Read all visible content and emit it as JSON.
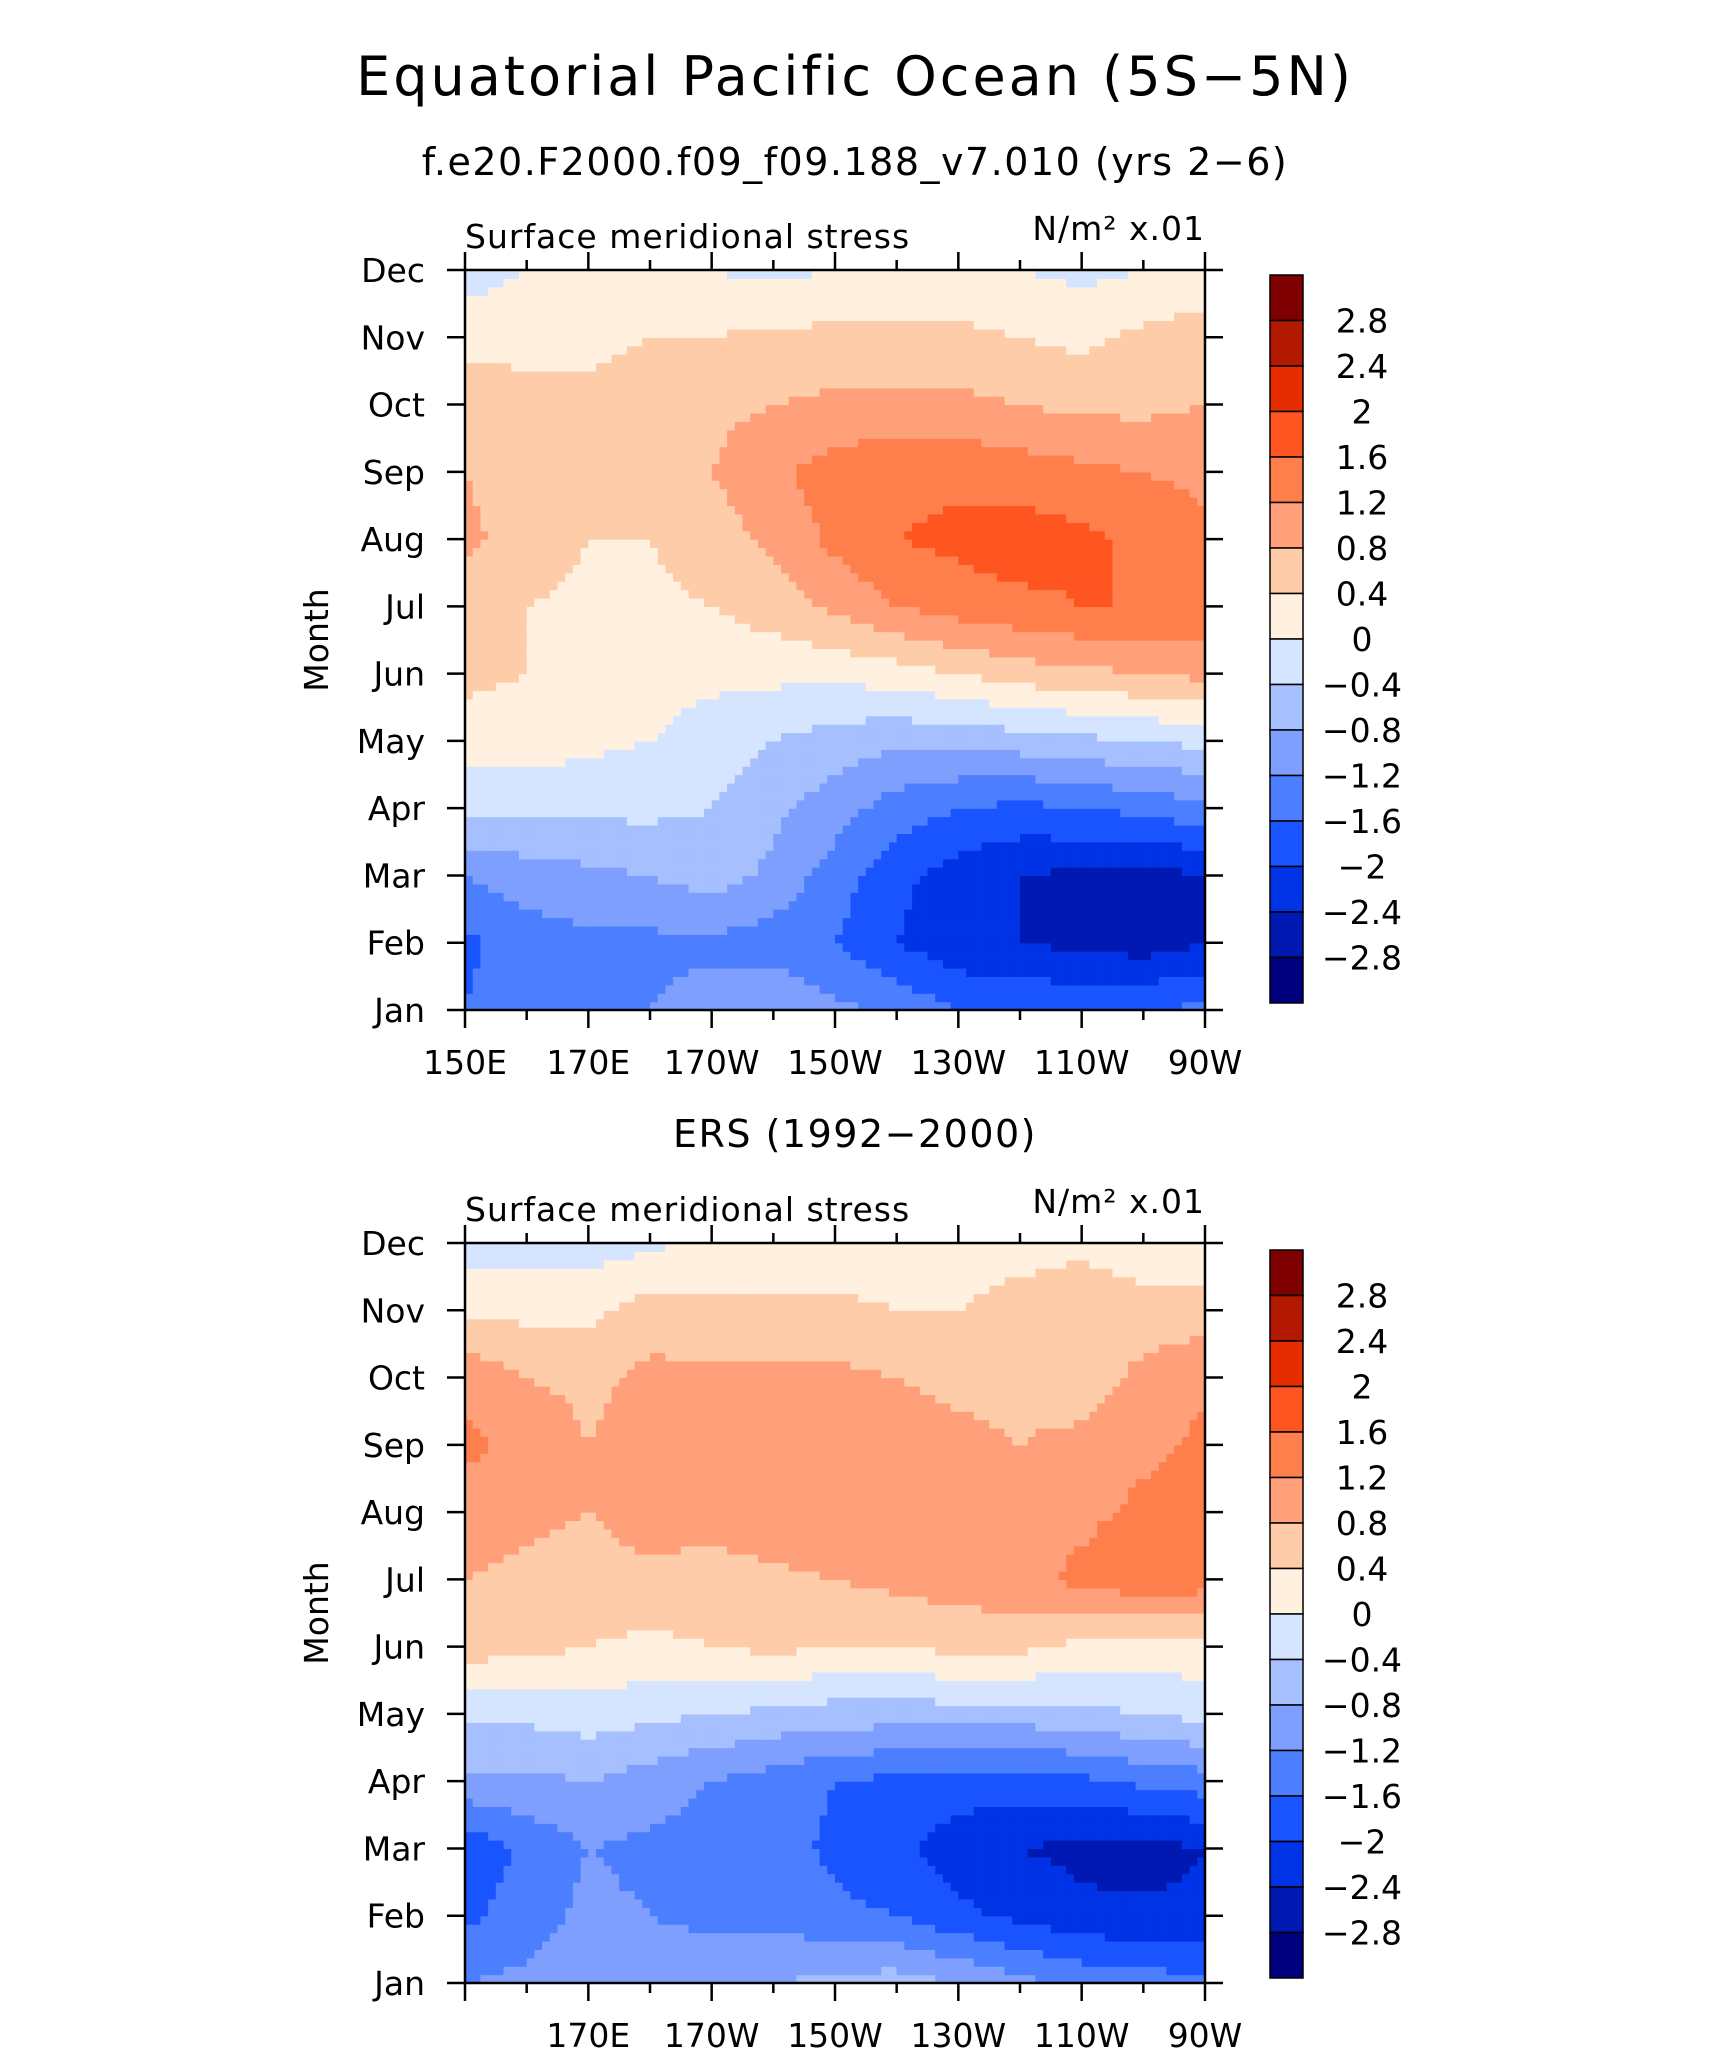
{
  "figure": {
    "title": "Equatorial Pacific Ocean (5S−5N)",
    "colors": [
      "#00007f",
      "#0019b2",
      "#0033e5",
      "#1954ff",
      "#4c7fff",
      "#7f9fff",
      "#a5bfff",
      "#d5e5ff",
      "#fff0e0",
      "#ffccaa",
      "#ffa07a",
      "#ff7f4c",
      "#ff5521",
      "#e52d00",
      "#b21900",
      "#7f0000"
    ],
    "colorbar_levels": [
      "2.8",
      "2.4",
      "2",
      "1.6",
      "1.2",
      "0.8",
      "0.4",
      "0",
      "−0.4",
      "−0.8",
      "−1.2",
      "−1.6",
      "−2",
      "−2.4",
      "−2.8"
    ]
  },
  "chart_data": [
    {
      "type": "heatmap",
      "title": "f.e20.F2000.f09_f09.188_v7.010 (yrs 2−6)",
      "left_string": "Surface meridional stress",
      "right_string": "N/m² x.01",
      "ylabel": "Month",
      "y_ticks": [
        "Jan",
        "Feb",
        "Mar",
        "Apr",
        "May",
        "Jun",
        "Jul",
        "Aug",
        "Sep",
        "Oct",
        "Nov",
        "Dec"
      ],
      "x_ticks": [
        "150E",
        "170E",
        "170W",
        "150W",
        "130W",
        "110W",
        "90W"
      ],
      "x_range_deg_east": [
        150,
        270
      ],
      "y_range_month_index": [
        0,
        11
      ],
      "x": [
        150,
        160,
        170,
        180,
        190,
        200,
        210,
        220,
        230,
        240,
        250,
        260,
        270
      ],
      "z": [
        [
          -1.6,
          -1.3,
          -1.2,
          -1.2,
          -1.0,
          -0.8,
          -1.1,
          -1.3,
          -1.6,
          -1.6,
          -1.7,
          -1.6,
          -1.5
        ],
        [
          -1.7,
          -1.4,
          -1.3,
          -1.3,
          -1.3,
          -1.4,
          -1.6,
          -2.0,
          -2.3,
          -2.4,
          -2.5,
          -2.6,
          -2.4
        ],
        [
          -1.2,
          -1.0,
          -0.9,
          -0.8,
          -0.6,
          -0.9,
          -1.4,
          -1.9,
          -2.2,
          -2.4,
          -2.5,
          -2.6,
          -2.4
        ],
        [
          -0.3,
          -0.3,
          -0.3,
          -0.3,
          -0.4,
          -0.7,
          -1.0,
          -1.4,
          -1.6,
          -1.7,
          -1.6,
          -1.5,
          -1.3
        ],
        [
          0.2,
          0.2,
          0.1,
          0.0,
          -0.2,
          -0.4,
          -0.6,
          -0.7,
          -0.7,
          -0.6,
          -0.5,
          -0.4,
          -0.3
        ],
        [
          0.5,
          0.4,
          0.3,
          0.2,
          0.1,
          0.1,
          0.1,
          0.2,
          0.4,
          0.6,
          0.7,
          0.8,
          0.9
        ],
        [
          0.6,
          0.4,
          0.3,
          0.3,
          0.4,
          0.6,
          0.9,
          1.2,
          1.4,
          1.5,
          1.6,
          1.6,
          1.5
        ],
        [
          0.9,
          0.6,
          0.4,
          0.4,
          0.6,
          0.9,
          1.3,
          1.6,
          1.7,
          1.8,
          1.7,
          1.5,
          1.3
        ],
        [
          0.8,
          0.6,
          0.5,
          0.6,
          0.8,
          1.1,
          1.4,
          1.5,
          1.5,
          1.4,
          1.3,
          1.2,
          1.1
        ],
        [
          0.6,
          0.5,
          0.5,
          0.6,
          0.7,
          0.8,
          0.9,
          0.9,
          0.9,
          0.8,
          0.7,
          0.7,
          0.8
        ],
        [
          0.3,
          0.3,
          0.3,
          0.4,
          0.4,
          0.5,
          0.5,
          0.5,
          0.5,
          0.4,
          0.3,
          0.5,
          0.6
        ],
        [
          -0.2,
          0.0,
          0.0,
          0.1,
          0.0,
          -0.1,
          0.0,
          0.1,
          0.1,
          0.0,
          -0.1,
          0.0,
          0.1
        ]
      ]
    },
    {
      "type": "heatmap",
      "title": "ERS (1992−2000)",
      "left_string": "Surface meridional stress",
      "right_string": "N/m² x.01",
      "ylabel": "Month",
      "y_ticks": [
        "Jan",
        "Feb",
        "Mar",
        "Apr",
        "May",
        "Jun",
        "Jul",
        "Aug",
        "Sep",
        "Oct",
        "Nov",
        "Dec"
      ],
      "x_ticks": [
        "170E",
        "170W",
        "150W",
        "130W",
        "110W",
        "90W"
      ],
      "x_range_deg_east": [
        150,
        270
      ],
      "y_range_month_index": [
        0,
        11
      ],
      "x": [
        150,
        160,
        170,
        180,
        190,
        200,
        210,
        220,
        230,
        240,
        250,
        260,
        270
      ],
      "z": [
        [
          -1.2,
          -1.1,
          -0.9,
          -1.0,
          -0.9,
          -0.8,
          -0.7,
          -0.6,
          -0.8,
          -1.1,
          -1.3,
          -1.4,
          -1.5
        ],
        [
          -1.7,
          -1.4,
          -1.1,
          -1.2,
          -1.3,
          -1.3,
          -1.5,
          -1.6,
          -1.9,
          -2.1,
          -2.3,
          -2.3,
          -2.3
        ],
        [
          -1.9,
          -1.5,
          -1.2,
          -1.3,
          -1.4,
          -1.4,
          -1.7,
          -1.9,
          -2.2,
          -2.4,
          -2.5,
          -2.6,
          -2.4
        ],
        [
          -0.9,
          -0.9,
          -0.8,
          -1.0,
          -1.2,
          -1.4,
          -1.6,
          -1.7,
          -1.8,
          -1.8,
          -1.7,
          -1.5,
          -1.4
        ],
        [
          -0.3,
          -0.3,
          -0.2,
          -0.3,
          -0.4,
          -0.5,
          -0.6,
          -0.6,
          -0.6,
          -0.6,
          -0.5,
          -0.4,
          -0.3
        ],
        [
          0.6,
          0.5,
          0.4,
          0.3,
          0.4,
          0.5,
          0.4,
          0.4,
          0.5,
          0.5,
          0.3,
          0.2,
          0.3
        ],
        [
          0.8,
          0.7,
          0.6,
          0.7,
          0.6,
          0.7,
          0.8,
          0.9,
          1.0,
          1.1,
          1.3,
          1.5,
          1.4
        ],
        [
          1.0,
          0.9,
          0.8,
          1.0,
          1.0,
          1.1,
          1.2,
          1.1,
          1.0,
          0.9,
          1.1,
          1.3,
          1.4
        ],
        [
          1.3,
          1.1,
          0.8,
          1.0,
          1.0,
          1.1,
          1.0,
          1.0,
          0.9,
          0.8,
          0.9,
          1.1,
          1.3
        ],
        [
          1.1,
          0.8,
          0.7,
          0.9,
          0.9,
          0.9,
          0.9,
          0.8,
          0.7,
          0.7,
          0.6,
          0.9,
          1.1
        ],
        [
          0.3,
          0.3,
          0.3,
          0.6,
          0.5,
          0.5,
          0.5,
          0.4,
          0.4,
          0.6,
          0.7,
          0.6,
          0.6
        ],
        [
          -0.2,
          -0.2,
          -0.2,
          -0.1,
          0.1,
          0.1,
          0.1,
          0.2,
          0.2,
          0.2,
          0.3,
          0.1,
          0.1
        ]
      ]
    }
  ]
}
